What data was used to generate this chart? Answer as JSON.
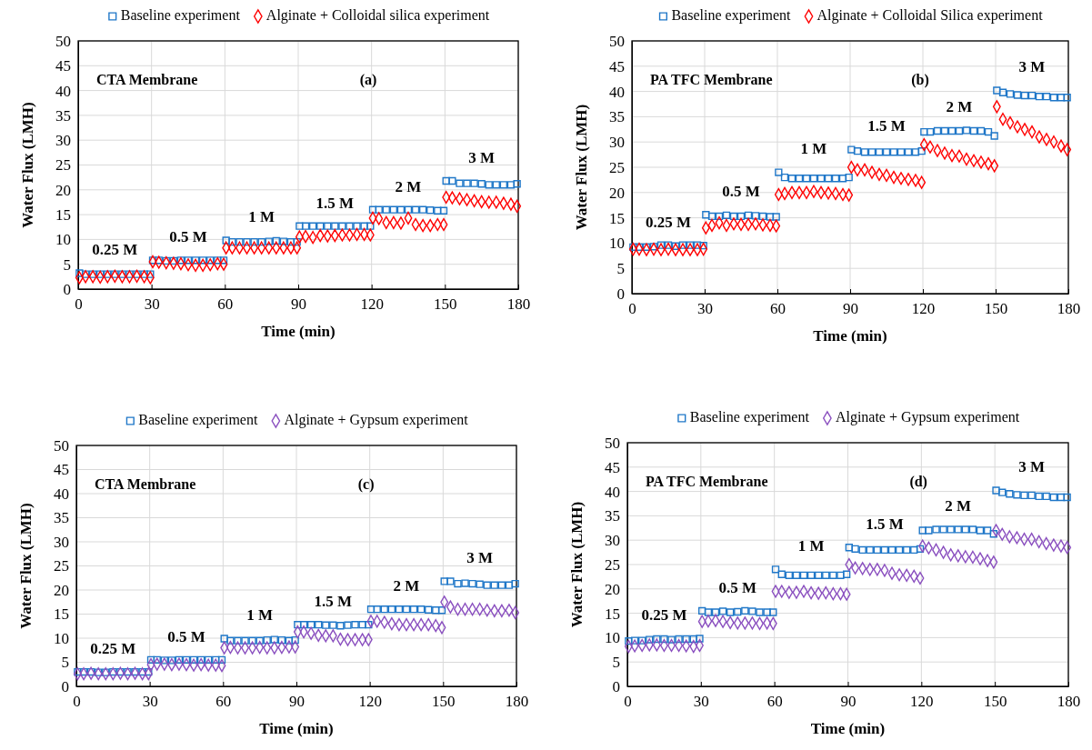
{
  "chart_data": [
    {
      "type": "scatter",
      "xlabel": "Time (min)",
      "ylabel": "Water Flux (LMH)",
      "xlim": [
        0,
        180
      ],
      "ylim": [
        0,
        50
      ],
      "xticks": [
        0,
        30,
        60,
        90,
        120,
        150,
        180
      ],
      "yticks": [
        0,
        5,
        10,
        15,
        20,
        25,
        30,
        35,
        40,
        45,
        50
      ],
      "grid": true,
      "legend": "top",
      "x": [
        0.5,
        3,
        6,
        9,
        12,
        15,
        18,
        21,
        24,
        27,
        29.5,
        30.5,
        33,
        36,
        39,
        42,
        45,
        48,
        51,
        54,
        57,
        59.5,
        60.5,
        63,
        66,
        69,
        72,
        75,
        78,
        81,
        84,
        87,
        89.5,
        90.5,
        93,
        96,
        99,
        102,
        105,
        108,
        111,
        114,
        117,
        119.5,
        120.5,
        123,
        126,
        129,
        132,
        135,
        138,
        141,
        144,
        147,
        149.5,
        150.5,
        153,
        156,
        159,
        162,
        165,
        168,
        171,
        174,
        177,
        179.5
      ],
      "annotations": [
        "CTA  Membrane",
        "(a)",
        "0.25 M",
        "0.5 M",
        "1 M",
        "1.5 M",
        "2 M",
        "3 M"
      ],
      "series": [
        {
          "name": "Baseline experiment",
          "color": "#1f77c8",
          "marker": "square",
          "values": [
            3.2,
            3,
            3,
            3,
            3,
            3,
            3,
            3,
            3,
            3,
            3,
            5.8,
            5.8,
            5.7,
            5.7,
            5.8,
            5.8,
            5.8,
            5.8,
            5.8,
            5.8,
            5.8,
            9.8,
            9.5,
            9.5,
            9.5,
            9.5,
            9.5,
            9.6,
            9.7,
            9.6,
            9.5,
            9.5,
            12.7,
            12.7,
            12.7,
            12.7,
            12.7,
            12.7,
            12.7,
            12.7,
            12.7,
            12.7,
            12.7,
            16,
            16,
            16,
            16,
            16,
            16,
            16,
            16,
            15.9,
            15.8,
            15.8,
            21.8,
            21.8,
            21.3,
            21.3,
            21.3,
            21.2,
            21,
            21,
            21,
            21,
            21.2
          ]
        },
        {
          "name": "Alginate + Colloidal silica experiment",
          "color": "#ff0000",
          "marker": "diamond",
          "values": [
            2.3,
            2.5,
            2.5,
            2.4,
            2.5,
            2.6,
            2.5,
            2.5,
            2.6,
            2.5,
            2.3,
            5.5,
            5.4,
            5.3,
            5.2,
            5.1,
            4.9,
            4.8,
            4.8,
            4.9,
            5.1,
            5,
            8.3,
            8.3,
            8.3,
            8.3,
            8.3,
            8.3,
            8.3,
            8.3,
            8.3,
            8.3,
            8.3,
            10.5,
            10.6,
            10.4,
            10.8,
            10.7,
            10.8,
            10.9,
            10.9,
            11,
            11,
            10.9,
            14.3,
            14.2,
            13.4,
            13.4,
            13.3,
            14.3,
            13,
            12.8,
            12.8,
            13,
            13,
            18.5,
            18.4,
            18.2,
            18,
            17.8,
            17.6,
            17.5,
            17.5,
            17.3,
            17.1,
            16.7
          ]
        }
      ]
    },
    {
      "type": "scatter",
      "xlabel": "Time (min)",
      "ylabel": "Water Flux (LMH)",
      "xlim": [
        0,
        180
      ],
      "ylim": [
        0,
        50
      ],
      "xticks": [
        0,
        30,
        60,
        90,
        120,
        150,
        180
      ],
      "yticks": [
        0,
        5,
        10,
        15,
        20,
        25,
        30,
        35,
        40,
        45,
        50
      ],
      "grid": true,
      "legend": "top",
      "x": [
        0.5,
        3,
        6,
        9,
        12,
        15,
        18,
        21,
        24,
        27,
        29.5,
        30.5,
        33,
        36,
        39,
        42,
        45,
        48,
        51,
        54,
        57,
        59.5,
        60.5,
        63,
        66,
        69,
        72,
        75,
        78,
        81,
        84,
        87,
        89.5,
        90.5,
        93,
        96,
        99,
        102,
        105,
        108,
        111,
        114,
        117,
        119.5,
        120.5,
        123,
        126,
        129,
        132,
        135,
        138,
        141,
        144,
        147,
        149.5,
        150.5,
        153,
        156,
        159,
        162,
        165,
        168,
        171,
        174,
        177,
        179.5
      ],
      "annotations": [
        "PA  TFC  Membrane",
        "(b)",
        "0.25 M",
        "0.5 M",
        "1 M",
        "1.5 M",
        "2 M",
        "3 M"
      ],
      "series": [
        {
          "name": "Baseline experiment",
          "color": "#1f77c8",
          "marker": "square",
          "values": [
            9.2,
            9.2,
            9.2,
            9.3,
            9.6,
            9.6,
            9.4,
            9.6,
            9.6,
            9.6,
            9.5,
            15.6,
            15.3,
            15.3,
            15.5,
            15.3,
            15.3,
            15.5,
            15.4,
            15.3,
            15.2,
            15.2,
            24,
            23,
            22.8,
            22.8,
            22.8,
            22.8,
            22.8,
            22.8,
            22.8,
            22.8,
            23,
            28.5,
            28.2,
            28,
            28,
            28,
            28,
            28,
            28,
            28,
            28,
            28.2,
            32,
            32,
            32.2,
            32.2,
            32.2,
            32.2,
            32.3,
            32.2,
            32.2,
            32,
            31.2,
            40.2,
            39.8,
            39.5,
            39.3,
            39.2,
            39.2,
            39,
            39,
            38.8,
            38.8,
            38.8
          ]
        },
        {
          "name": "Alginate + Colloidal Silica experiment",
          "color": "#ff0000",
          "marker": "diamond",
          "values": [
            8.8,
            8.8,
            8.7,
            8.8,
            8.7,
            8.8,
            8.7,
            8.7,
            8.7,
            8.7,
            8.8,
            13,
            13.5,
            14,
            13.5,
            13.8,
            13.7,
            13.7,
            13.8,
            13.6,
            13.5,
            13.4,
            19.6,
            19.8,
            20,
            20,
            20,
            20.2,
            20,
            19.9,
            19.8,
            19.6,
            19.5,
            25,
            24.5,
            24.5,
            24,
            23.6,
            23.4,
            23,
            22.8,
            22.6,
            22.4,
            22,
            29.5,
            29,
            28.3,
            27.8,
            27.3,
            27.2,
            26.6,
            26.3,
            26,
            25.7,
            25.3,
            37,
            34.5,
            33.8,
            33,
            32.5,
            32,
            31,
            30.5,
            30,
            29.2,
            28.5
          ]
        }
      ]
    },
    {
      "type": "scatter",
      "xlabel": "Time (min)",
      "ylabel": "Water Flux (LMH)",
      "xlim": [
        0,
        180
      ],
      "ylim": [
        0,
        50
      ],
      "xticks": [
        0,
        30,
        60,
        90,
        120,
        150,
        180
      ],
      "yticks": [
        0,
        5,
        10,
        15,
        20,
        25,
        30,
        35,
        40,
        45,
        50
      ],
      "grid": true,
      "legend": "top",
      "x": [
        0.5,
        3,
        6,
        9,
        12,
        15,
        18,
        21,
        24,
        27,
        29.5,
        30.5,
        33,
        36,
        39,
        42,
        45,
        48,
        51,
        54,
        57,
        59.5,
        60.5,
        63,
        66,
        69,
        72,
        75,
        78,
        81,
        84,
        87,
        89.5,
        90.5,
        93,
        96,
        99,
        102,
        105,
        108,
        111,
        114,
        117,
        119.5,
        120.5,
        123,
        126,
        129,
        132,
        135,
        138,
        141,
        144,
        147,
        149.5,
        150.5,
        153,
        156,
        159,
        162,
        165,
        168,
        171,
        174,
        177,
        179.5
      ],
      "annotations": [
        "CTA  Membrane",
        "(c)",
        "0.25 M",
        "0.5 M",
        "1 M",
        "1.5 M",
        "2 M",
        "3 M"
      ],
      "series": [
        {
          "name": "Baseline experiment",
          "color": "#1f77c8",
          "marker": "square",
          "values": [
            3,
            3,
            3,
            2.9,
            2.9,
            3,
            3,
            3,
            3,
            3,
            3,
            5.5,
            5.5,
            5.4,
            5.4,
            5.5,
            5.5,
            5.5,
            5.5,
            5.5,
            5.5,
            5.5,
            9.9,
            9.5,
            9.5,
            9.5,
            9.5,
            9.5,
            9.6,
            9.7,
            9.6,
            9.5,
            9.6,
            12.8,
            12.8,
            12.8,
            12.8,
            12.7,
            12.7,
            12.6,
            12.7,
            12.8,
            12.8,
            12.8,
            16,
            16,
            16,
            16,
            16,
            16,
            16,
            16,
            15.9,
            15.8,
            15.8,
            21.8,
            21.8,
            21.3,
            21.4,
            21.3,
            21.2,
            21,
            21,
            21,
            21,
            21.3
          ]
        },
        {
          "name": "Alginate + Gypsum experiment",
          "color": "#8a4fbf",
          "marker": "diamond",
          "values": [
            2.6,
            2.6,
            2.7,
            2.6,
            2.6,
            2.6,
            2.7,
            2.6,
            2.7,
            2.6,
            2.6,
            4.5,
            4.6,
            4.6,
            4.5,
            4.6,
            4.5,
            4.4,
            4.5,
            4.4,
            4.4,
            4.3,
            8,
            8.1,
            8,
            8,
            8,
            8.1,
            8,
            8,
            8.1,
            8.2,
            8.2,
            11.3,
            11.3,
            11,
            10.6,
            10.5,
            10.5,
            9.8,
            9.7,
            9.7,
            9.7,
            9.7,
            13.5,
            13.5,
            13.3,
            13,
            12.8,
            12.8,
            12.8,
            12.8,
            12.8,
            12.6,
            12.2,
            17.5,
            16.5,
            16,
            16,
            16,
            16,
            15.8,
            15.7,
            15.7,
            15.8,
            15.3
          ]
        }
      ]
    },
    {
      "type": "scatter",
      "xlabel": "Time (min)",
      "ylabel": "Water Flux (LMH)",
      "xlim": [
        0,
        180
      ],
      "ylim": [
        0,
        50
      ],
      "xticks": [
        0,
        30,
        60,
        90,
        120,
        150,
        180
      ],
      "yticks": [
        0,
        5,
        10,
        15,
        20,
        25,
        30,
        35,
        40,
        45,
        50
      ],
      "grid": true,
      "legend": "top",
      "x": [
        0.5,
        3,
        6,
        9,
        12,
        15,
        18,
        21,
        24,
        27,
        29.5,
        30.5,
        33,
        36,
        39,
        42,
        45,
        48,
        51,
        54,
        57,
        59.5,
        60.5,
        63,
        66,
        69,
        72,
        75,
        78,
        81,
        84,
        87,
        89.5,
        90.5,
        93,
        96,
        99,
        102,
        105,
        108,
        111,
        114,
        117,
        119.5,
        120.5,
        123,
        126,
        129,
        132,
        135,
        138,
        141,
        144,
        147,
        149.5,
        150.5,
        153,
        156,
        159,
        162,
        165,
        168,
        171,
        174,
        177,
        179.5
      ],
      "annotations": [
        "PA  TFC  Membrane",
        "(d)",
        "0.25 M",
        "0.5 M",
        "1 M",
        "1.5 M",
        "2 M",
        "3 M"
      ],
      "series": [
        {
          "name": "Baseline experiment",
          "color": "#1f77c8",
          "marker": "square",
          "values": [
            9.3,
            9.4,
            9.4,
            9.6,
            9.7,
            9.7,
            9.6,
            9.7,
            9.7,
            9.7,
            9.8,
            15.5,
            15.2,
            15.2,
            15.4,
            15.2,
            15.3,
            15.5,
            15.4,
            15.2,
            15.2,
            15.2,
            24,
            23,
            22.8,
            22.8,
            22.8,
            22.8,
            22.8,
            22.8,
            22.8,
            22.8,
            23,
            28.5,
            28.2,
            28,
            28,
            28,
            28,
            28,
            28,
            28,
            28,
            28.2,
            32,
            32,
            32.2,
            32.2,
            32.2,
            32.2,
            32.2,
            32.2,
            32,
            32,
            31.3,
            40.2,
            39.8,
            39.5,
            39.3,
            39.2,
            39.2,
            39,
            39,
            38.8,
            38.8,
            38.8
          ]
        },
        {
          "name": "Alginate + Gypsum experiment",
          "color": "#8a4fbf",
          "marker": "diamond",
          "values": [
            8.2,
            8.3,
            8.4,
            8.5,
            8.5,
            8.4,
            8.4,
            8.4,
            8.3,
            8.2,
            8.4,
            13.3,
            13.4,
            13.5,
            13.3,
            13.1,
            13,
            13,
            13,
            12.9,
            13,
            12.9,
            19.5,
            19.5,
            19.3,
            19.3,
            19.5,
            19.2,
            19.1,
            19.2,
            19,
            19,
            18.9,
            25,
            24.3,
            24.2,
            24,
            24,
            23.8,
            23.2,
            22.9,
            22.8,
            22.6,
            22.2,
            28.8,
            28.4,
            28,
            27.5,
            27,
            26.8,
            26.6,
            26.5,
            26.2,
            25.8,
            25.5,
            32,
            31.2,
            30.7,
            30.5,
            30.2,
            30.2,
            29.7,
            29.3,
            29,
            28.8,
            28.5
          ]
        }
      ]
    }
  ]
}
